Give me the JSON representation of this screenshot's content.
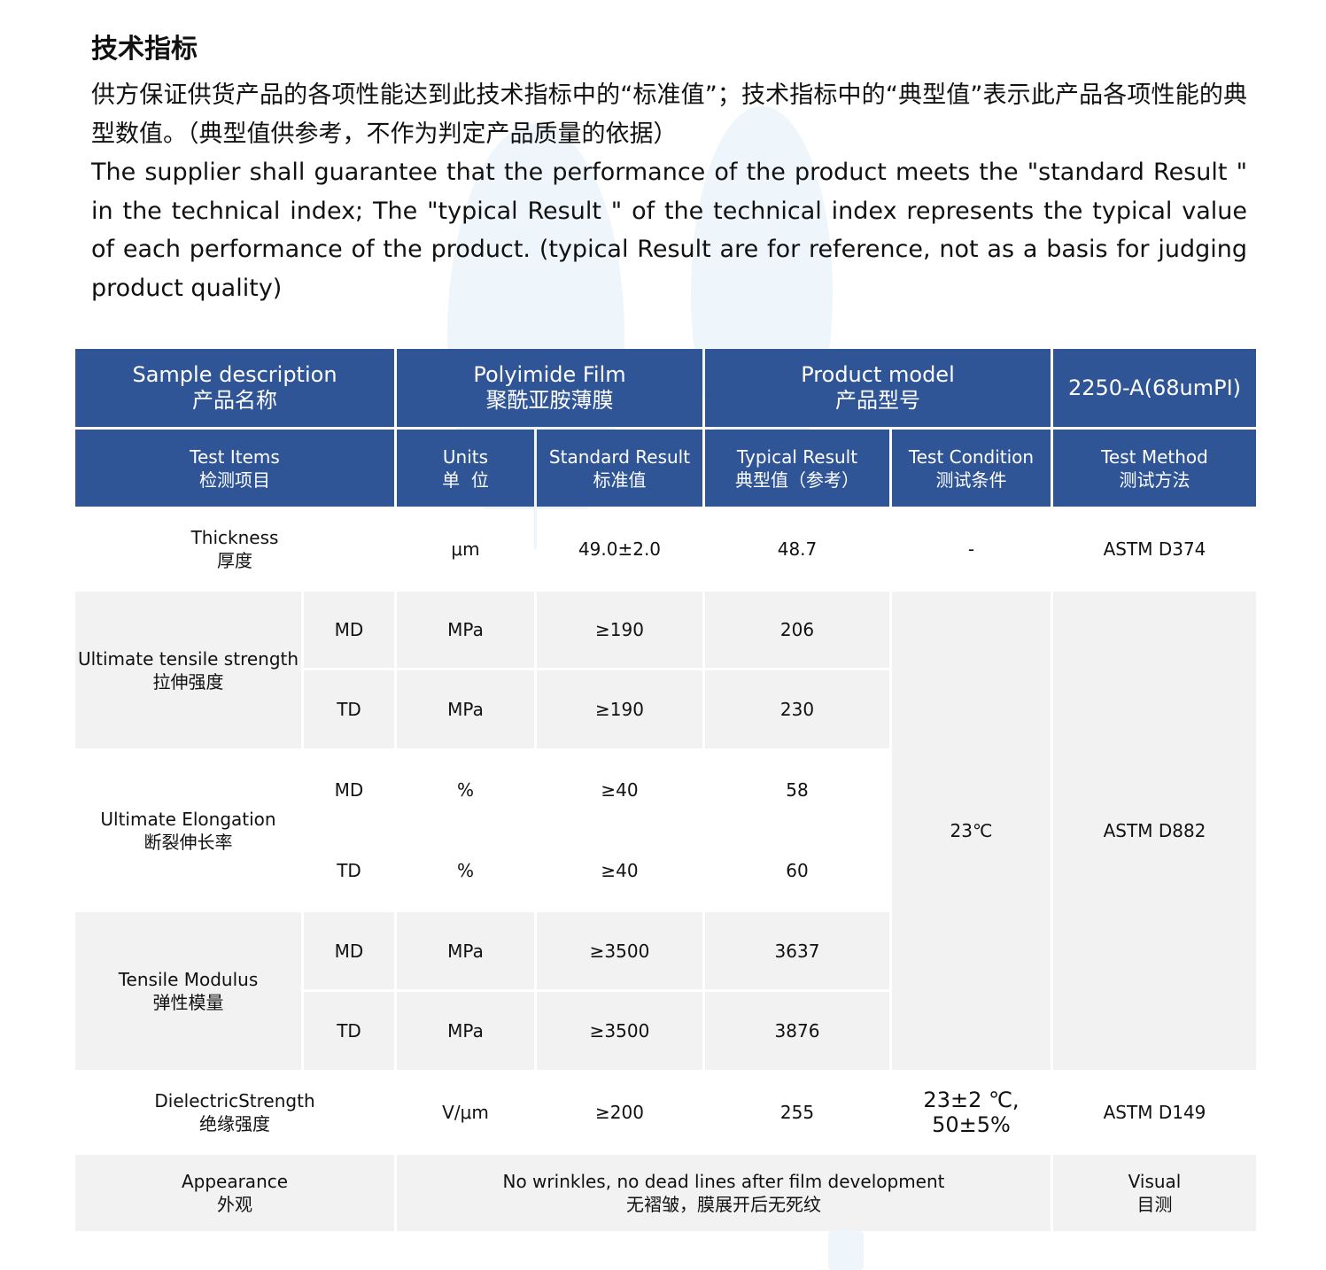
{
  "heading": "技术指标",
  "intro_cn": "供方保证供货产品的各项性能达到此技术指标中的“标准值”；技术指标中的“典型值”表示此产品各项性能的典型数值。（典型值供参考，不作为判定产品质量的依据）",
  "intro_en": "The supplier shall guarantee that the performance of the product meets the \"standard Result \" in the technical index; The \"typical Result \" of the technical index represents the typical value of each performance of the product. (typical Result are for reference, not as a basis for judging product quality)",
  "table": {
    "header_top": {
      "sample_desc": "Sample description",
      "sample_desc_cn": "产品名称",
      "product": "Polyimide Film",
      "product_cn": "聚酰亚胺薄膜",
      "model_label": "Product model",
      "model_label_cn": "产品型号",
      "model": "2250-A(68umPI)"
    },
    "columns": [
      {
        "en": "Test Items",
        "cn": "检测项目"
      },
      {
        "en": "Units",
        "cn": "单  位"
      },
      {
        "en": "Standard Result",
        "cn": "标准值"
      },
      {
        "en": "Typical Result",
        "cn": "典型值（参考）"
      },
      {
        "en": "Test Condition",
        "cn": "测试条件"
      },
      {
        "en": "Test Method",
        "cn": "测试方法"
      }
    ],
    "thickness": {
      "en": "Thickness",
      "cn": "厚度",
      "unit": "μm",
      "standard": "49.0±2.0",
      "typical": "48.7",
      "condition": "-",
      "method": "ASTM D374"
    },
    "tensile": {
      "en": "Ultimate tensile strength",
      "cn": "拉伸强度",
      "md": {
        "dir": "MD",
        "unit": "MPa",
        "standard": "≥190",
        "typical": "206"
      },
      "td": {
        "dir": "TD",
        "unit": "MPa",
        "standard": "≥190",
        "typical": "230"
      }
    },
    "elongation": {
      "en": "Ultimate Elongation",
      "cn": "断裂伸长率",
      "md": {
        "dir": "MD",
        "unit": "%",
        "standard": "≥40",
        "typical": "58"
      },
      "td": {
        "dir": "TD",
        "unit": "%",
        "standard": "≥40",
        "typical": "60"
      }
    },
    "modulus": {
      "en": "Tensile Modulus",
      "cn": "弹性模量",
      "md": {
        "dir": "MD",
        "unit": "MPa",
        "standard": "≥3500",
        "typical": "3637"
      },
      "td": {
        "dir": "TD",
        "unit": "MPa",
        "standard": "≥3500",
        "typical": "3876"
      }
    },
    "mech_condition": "23℃",
    "mech_method": "ASTM D882",
    "dielectric": {
      "en": "DielectricStrength",
      "cn": "绝缘强度",
      "unit": "V/μm",
      "standard": "≥200",
      "typical": "255",
      "condition_1": "23±2 ℃,",
      "condition_2": "50±5%",
      "method": "ASTM D149"
    },
    "appearance": {
      "en": "Appearance",
      "cn": "外观",
      "desc_en": "No wrinkles, no dead lines after film development",
      "desc_cn": "无褶皱，膜展开后无死纹",
      "method_en": "Visual",
      "method_cn": "目测"
    }
  },
  "colors": {
    "header_bg": "#2f5597",
    "row_alt_bg": "#f2f2f2",
    "watermark": "#eef6fc"
  }
}
